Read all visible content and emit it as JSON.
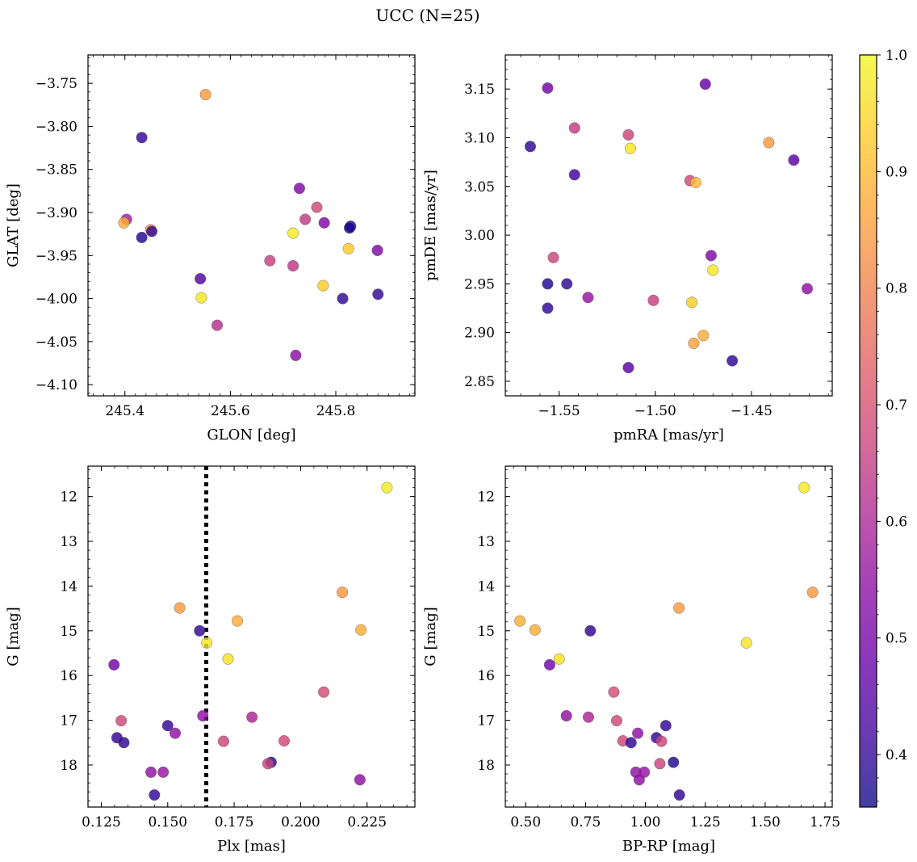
{
  "suptitle": "UCC (N=25)",
  "colorbar": {
    "colormap": "plasma",
    "range": [
      0.355,
      1.0
    ],
    "ticks": [
      0.4,
      0.5,
      0.6,
      0.7,
      0.8,
      0.9,
      1.0
    ],
    "tick_labels": [
      "0.4",
      "0.5",
      "0.6",
      "0.7",
      "0.8",
      "0.9",
      "1.0"
    ]
  },
  "chart_data": [
    {
      "type": "scatter",
      "id": "glon-glat",
      "xlabel": "GLON [deg]",
      "ylabel": "GLAT [deg]",
      "xlim": [
        245.33,
        245.95
      ],
      "ylim": [
        -4.113,
        -3.717
      ],
      "xticks": [
        245.4,
        245.6,
        245.8
      ],
      "xtick_labels": [
        "245.4",
        "245.6",
        "245.8"
      ],
      "yticks": [
        -3.75,
        -3.8,
        -3.85,
        -3.9,
        -3.95,
        -4.0,
        -4.05,
        -4.1
      ],
      "ytick_labels": [
        "−3.75",
        "−3.80",
        "−3.85",
        "−3.90",
        "−3.95",
        "−4.00",
        "−4.05",
        "−4.10"
      ],
      "points": [
        {
          "x": 245.553,
          "y": -3.763,
          "c": 0.85
        },
        {
          "x": 245.432,
          "y": -3.813,
          "c": 0.4
        },
        {
          "x": 245.731,
          "y": -3.872,
          "c": 0.52
        },
        {
          "x": 245.764,
          "y": -3.894,
          "c": 0.68
        },
        {
          "x": 245.742,
          "y": -3.908,
          "c": 0.65
        },
        {
          "x": 245.778,
          "y": -3.912,
          "c": 0.52
        },
        {
          "x": 245.828,
          "y": -3.916,
          "c": 0.38
        },
        {
          "x": 245.826,
          "y": -3.918,
          "c": 0.37
        },
        {
          "x": 245.403,
          "y": -3.908,
          "c": 0.58
        },
        {
          "x": 245.398,
          "y": -3.912,
          "c": 0.88
        },
        {
          "x": 245.449,
          "y": -3.92,
          "c": 0.85
        },
        {
          "x": 245.451,
          "y": -3.922,
          "c": 0.4
        },
        {
          "x": 245.432,
          "y": -3.929,
          "c": 0.38
        },
        {
          "x": 245.719,
          "y": -3.924,
          "c": 0.98
        },
        {
          "x": 245.824,
          "y": -3.942,
          "c": 0.93
        },
        {
          "x": 245.879,
          "y": -3.944,
          "c": 0.52
        },
        {
          "x": 245.675,
          "y": -3.956,
          "c": 0.66
        },
        {
          "x": 245.719,
          "y": -3.962,
          "c": 0.64
        },
        {
          "x": 245.543,
          "y": -3.977,
          "c": 0.44
        },
        {
          "x": 245.776,
          "y": -3.985,
          "c": 0.93
        },
        {
          "x": 245.88,
          "y": -3.995,
          "c": 0.4
        },
        {
          "x": 245.545,
          "y": -3.999,
          "c": 0.97
        },
        {
          "x": 245.813,
          "y": -4.0,
          "c": 0.4
        },
        {
          "x": 245.575,
          "y": -4.031,
          "c": 0.62
        },
        {
          "x": 245.724,
          "y": -4.066,
          "c": 0.54
        }
      ]
    },
    {
      "type": "scatter",
      "id": "pmra-pmde",
      "xlabel": "pmRA [mas/yr]",
      "ylabel": "pmDE [mas/yr]",
      "xlim": [
        -1.578,
        -1.408
      ],
      "ylim": [
        2.835,
        3.185
      ],
      "xticks": [
        -1.55,
        -1.5,
        -1.45
      ],
      "xtick_labels": [
        "−1.55",
        "−1.50",
        "−1.45"
      ],
      "yticks": [
        2.85,
        2.9,
        2.95,
        3.0,
        3.05,
        3.1,
        3.15
      ],
      "ytick_labels": [
        "2.85",
        "2.90",
        "2.95",
        "3.00",
        "3.05",
        "3.10",
        "3.15"
      ],
      "points": [
        {
          "x": -1.556,
          "y": 3.151,
          "c": 0.5
        },
        {
          "x": -1.474,
          "y": 3.155,
          "c": 0.48
        },
        {
          "x": -1.542,
          "y": 3.11,
          "c": 0.65
        },
        {
          "x": -1.514,
          "y": 3.103,
          "c": 0.67
        },
        {
          "x": -1.565,
          "y": 3.091,
          "c": 0.4
        },
        {
          "x": -1.513,
          "y": 3.089,
          "c": 0.97
        },
        {
          "x": -1.441,
          "y": 3.095,
          "c": 0.85
        },
        {
          "x": -1.428,
          "y": 3.077,
          "c": 0.46
        },
        {
          "x": -1.542,
          "y": 3.062,
          "c": 0.42
        },
        {
          "x": -1.482,
          "y": 3.056,
          "c": 0.68
        },
        {
          "x": -1.479,
          "y": 3.054,
          "c": 0.9
        },
        {
          "x": -1.553,
          "y": 2.977,
          "c": 0.67
        },
        {
          "x": -1.471,
          "y": 2.979,
          "c": 0.52
        },
        {
          "x": -1.47,
          "y": 2.964,
          "c": 0.97
        },
        {
          "x": -1.556,
          "y": 2.95,
          "c": 0.38
        },
        {
          "x": -1.546,
          "y": 2.95,
          "c": 0.4
        },
        {
          "x": -1.421,
          "y": 2.945,
          "c": 0.55
        },
        {
          "x": -1.535,
          "y": 2.936,
          "c": 0.56
        },
        {
          "x": -1.501,
          "y": 2.933,
          "c": 0.66
        },
        {
          "x": -1.481,
          "y": 2.931,
          "c": 0.93
        },
        {
          "x": -1.556,
          "y": 2.925,
          "c": 0.4
        },
        {
          "x": -1.475,
          "y": 2.897,
          "c": 0.88
        },
        {
          "x": -1.48,
          "y": 2.889,
          "c": 0.86
        },
        {
          "x": -1.46,
          "y": 2.871,
          "c": 0.4
        },
        {
          "x": -1.514,
          "y": 2.864,
          "c": 0.46
        }
      ]
    },
    {
      "type": "scatter",
      "id": "plx-g",
      "xlabel": "Plx [mas]",
      "ylabel": "G [mag]",
      "xlim": [
        0.12,
        0.243
      ],
      "ylim": [
        18.94,
        11.32
      ],
      "xticks": [
        0.125,
        0.15,
        0.175,
        0.2,
        0.225
      ],
      "xtick_labels": [
        "0.125",
        "0.150",
        "0.175",
        "0.200",
        "0.225"
      ],
      "yticks": [
        12,
        13,
        14,
        15,
        16,
        17,
        18
      ],
      "ytick_labels": [
        "12",
        "13",
        "14",
        "15",
        "16",
        "17",
        "18"
      ],
      "vline": 0.1645,
      "points": [
        {
          "x": 0.2325,
          "y": 11.8,
          "c": 0.98
        },
        {
          "x": 0.1545,
          "y": 14.49,
          "c": 0.85
        },
        {
          "x": 0.2157,
          "y": 14.14,
          "c": 0.84
        },
        {
          "x": 0.1762,
          "y": 14.78,
          "c": 0.88
        },
        {
          "x": 0.162,
          "y": 15.0,
          "c": 0.4
        },
        {
          "x": 0.2227,
          "y": 14.98,
          "c": 0.88
        },
        {
          "x": 0.1647,
          "y": 15.27,
          "c": 0.97
        },
        {
          "x": 0.1727,
          "y": 15.63,
          "c": 0.96
        },
        {
          "x": 0.1298,
          "y": 15.76,
          "c": 0.5
        },
        {
          "x": 0.2087,
          "y": 16.37,
          "c": 0.69
        },
        {
          "x": 0.1632,
          "y": 16.9,
          "c": 0.55
        },
        {
          "x": 0.1817,
          "y": 16.93,
          "c": 0.6
        },
        {
          "x": 0.1325,
          "y": 17.01,
          "c": 0.68
        },
        {
          "x": 0.15,
          "y": 17.12,
          "c": 0.4
        },
        {
          "x": 0.1528,
          "y": 17.29,
          "c": 0.55
        },
        {
          "x": 0.1309,
          "y": 17.39,
          "c": 0.4
        },
        {
          "x": 0.171,
          "y": 17.47,
          "c": 0.67
        },
        {
          "x": 0.1938,
          "y": 17.46,
          "c": 0.68
        },
        {
          "x": 0.1335,
          "y": 17.5,
          "c": 0.4
        },
        {
          "x": 0.1889,
          "y": 17.94,
          "c": 0.38
        },
        {
          "x": 0.1877,
          "y": 17.97,
          "c": 0.67
        },
        {
          "x": 0.1437,
          "y": 18.16,
          "c": 0.55
        },
        {
          "x": 0.1483,
          "y": 18.16,
          "c": 0.56
        },
        {
          "x": 0.2223,
          "y": 18.33,
          "c": 0.55
        },
        {
          "x": 0.145,
          "y": 18.67,
          "c": 0.4
        }
      ]
    },
    {
      "type": "scatter",
      "id": "bprp-g",
      "xlabel": "BP-RP [mag]",
      "ylabel": "G [mag]",
      "xlim": [
        0.415,
        1.78
      ],
      "ylim": [
        18.94,
        11.32
      ],
      "xticks": [
        0.5,
        0.75,
        1.0,
        1.25,
        1.5,
        1.75
      ],
      "xtick_labels": [
        "0.50",
        "0.75",
        "1.00",
        "1.25",
        "1.50",
        "1.75"
      ],
      "yticks": [
        12,
        13,
        14,
        15,
        16,
        17,
        18
      ],
      "ytick_labels": [
        "12",
        "13",
        "14",
        "15",
        "16",
        "17",
        "18"
      ],
      "points": [
        {
          "x": 1.663,
          "y": 11.8,
          "c": 0.98
        },
        {
          "x": 1.698,
          "y": 14.14,
          "c": 0.84
        },
        {
          "x": 1.14,
          "y": 14.49,
          "c": 0.85
        },
        {
          "x": 0.476,
          "y": 14.78,
          "c": 0.88
        },
        {
          "x": 0.539,
          "y": 14.98,
          "c": 0.88
        },
        {
          "x": 0.77,
          "y": 15.0,
          "c": 0.4
        },
        {
          "x": 1.422,
          "y": 15.27,
          "c": 0.97
        },
        {
          "x": 0.64,
          "y": 15.63,
          "c": 0.96
        },
        {
          "x": 0.6,
          "y": 15.76,
          "c": 0.5
        },
        {
          "x": 0.868,
          "y": 16.37,
          "c": 0.69
        },
        {
          "x": 0.67,
          "y": 16.9,
          "c": 0.55
        },
        {
          "x": 0.762,
          "y": 16.93,
          "c": 0.6
        },
        {
          "x": 0.88,
          "y": 17.01,
          "c": 0.68
        },
        {
          "x": 1.085,
          "y": 17.12,
          "c": 0.4
        },
        {
          "x": 0.968,
          "y": 17.29,
          "c": 0.55
        },
        {
          "x": 1.046,
          "y": 17.39,
          "c": 0.4
        },
        {
          "x": 0.906,
          "y": 17.46,
          "c": 0.68
        },
        {
          "x": 1.067,
          "y": 17.47,
          "c": 0.67
        },
        {
          "x": 0.94,
          "y": 17.5,
          "c": 0.4
        },
        {
          "x": 1.117,
          "y": 17.94,
          "c": 0.38
        },
        {
          "x": 1.06,
          "y": 17.97,
          "c": 0.67
        },
        {
          "x": 0.96,
          "y": 18.16,
          "c": 0.55
        },
        {
          "x": 0.995,
          "y": 18.16,
          "c": 0.56
        },
        {
          "x": 0.974,
          "y": 18.33,
          "c": 0.55
        },
        {
          "x": 1.142,
          "y": 18.67,
          "c": 0.4
        }
      ]
    }
  ]
}
